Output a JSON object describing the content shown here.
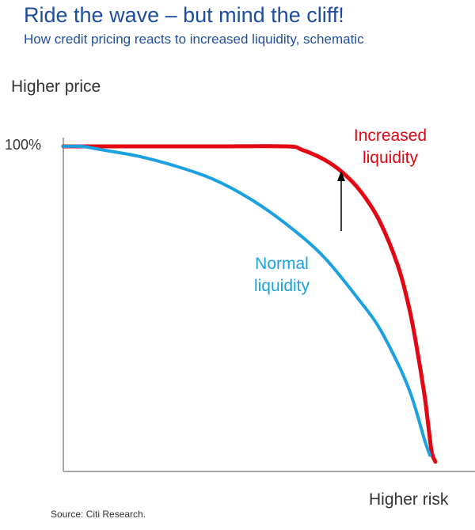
{
  "title": "Ride the wave – but mind the cliff!",
  "subtitle": "How credit pricing reacts to increased liquidity, schematic",
  "source": "Source: Citi Research.",
  "chart_data": {
    "type": "line",
    "ylabel": "Higher price",
    "xlabel": "Higher risk",
    "ytick_labels": [
      "100%"
    ],
    "xlim": [
      0,
      1
    ],
    "ylim": [
      0,
      1
    ],
    "grid": false,
    "colors": {
      "increased": "#e30613",
      "normal": "#1ba1e2",
      "axis": "#a6a6a6",
      "arrow": "#000000"
    },
    "series": [
      {
        "name": "Increased liquidity",
        "x": [
          0,
          0.2,
          0.4,
          0.6,
          0.64,
          0.7,
          0.75,
          0.8,
          0.85,
          0.9,
          0.93,
          0.95,
          0.97,
          0.98,
          0.99,
          1.0
        ],
        "y": [
          1.0,
          1.0,
          1.0,
          1.0,
          0.99,
          0.96,
          0.92,
          0.86,
          0.77,
          0.63,
          0.5,
          0.38,
          0.24,
          0.15,
          0.06,
          0.03
        ]
      },
      {
        "name": "Normal liquidity",
        "x": [
          0,
          0.05,
          0.1,
          0.2,
          0.3,
          0.4,
          0.5,
          0.6,
          0.7,
          0.8,
          0.85,
          0.9,
          0.93,
          0.95,
          0.97,
          0.985
        ],
        "y": [
          1.0,
          1.0,
          0.99,
          0.97,
          0.94,
          0.9,
          0.84,
          0.76,
          0.66,
          0.52,
          0.44,
          0.33,
          0.25,
          0.18,
          0.1,
          0.05
        ]
      }
    ],
    "annotations": [
      "Increased liquidity",
      "Normal liquidity"
    ]
  }
}
